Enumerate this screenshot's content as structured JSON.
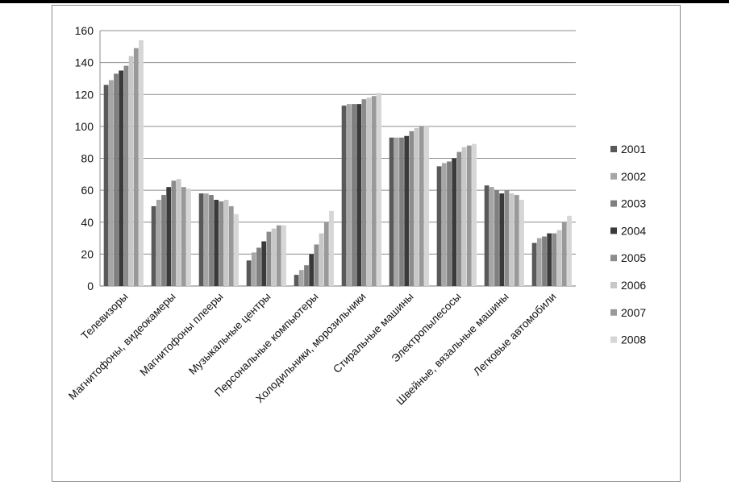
{
  "chart_data": {
    "type": "bar",
    "categories": [
      "Телевизоры",
      "Магнитофоны, видеокамеры",
      "Магнитофоны плееры",
      "Музыкальные центры",
      "Персональные компьютеры",
      "Холодильники, морозильники",
      "Стиральные машины",
      "Электропылесосы",
      "Швейные, вязальные машины",
      "Легковые автомобили"
    ],
    "series": [
      {
        "name": "2001",
        "color": "#595959",
        "values": [
          126,
          50,
          58,
          16,
          7,
          113,
          93,
          75,
          63,
          27
        ]
      },
      {
        "name": "2002",
        "color": "#a6a6a6",
        "values": [
          129,
          54,
          58,
          21,
          10,
          114,
          93,
          77,
          62,
          30
        ]
      },
      {
        "name": "2003",
        "color": "#7f7f7f",
        "values": [
          133,
          57,
          57,
          24,
          13,
          114,
          93,
          78,
          60,
          31
        ]
      },
      {
        "name": "2004",
        "color": "#3a3a3a",
        "values": [
          135,
          62,
          54,
          28,
          20,
          114,
          94,
          80,
          58,
          33
        ]
      },
      {
        "name": "2005",
        "color": "#8c8c8c",
        "values": [
          138,
          66,
          53,
          34,
          26,
          117,
          97,
          84,
          60,
          33
        ]
      },
      {
        "name": "2006",
        "color": "#c8c8c8",
        "values": [
          144,
          67,
          54,
          36,
          33,
          118,
          99,
          87,
          58,
          35
        ]
      },
      {
        "name": "2007",
        "color": "#999999",
        "values": [
          149,
          62,
          50,
          38,
          40,
          119,
          100,
          88,
          57,
          40
        ]
      },
      {
        "name": "2008",
        "color": "#d6d6d6",
        "values": [
          154,
          61,
          45,
          38,
          47,
          121,
          100,
          89,
          54,
          44
        ]
      }
    ],
    "yticks": [
      "0",
      "20",
      "40",
      "60",
      "80",
      "100",
      "120",
      "140",
      "160"
    ],
    "ylim": [
      0,
      160
    ],
    "grid": true,
    "legend_position": "right"
  }
}
